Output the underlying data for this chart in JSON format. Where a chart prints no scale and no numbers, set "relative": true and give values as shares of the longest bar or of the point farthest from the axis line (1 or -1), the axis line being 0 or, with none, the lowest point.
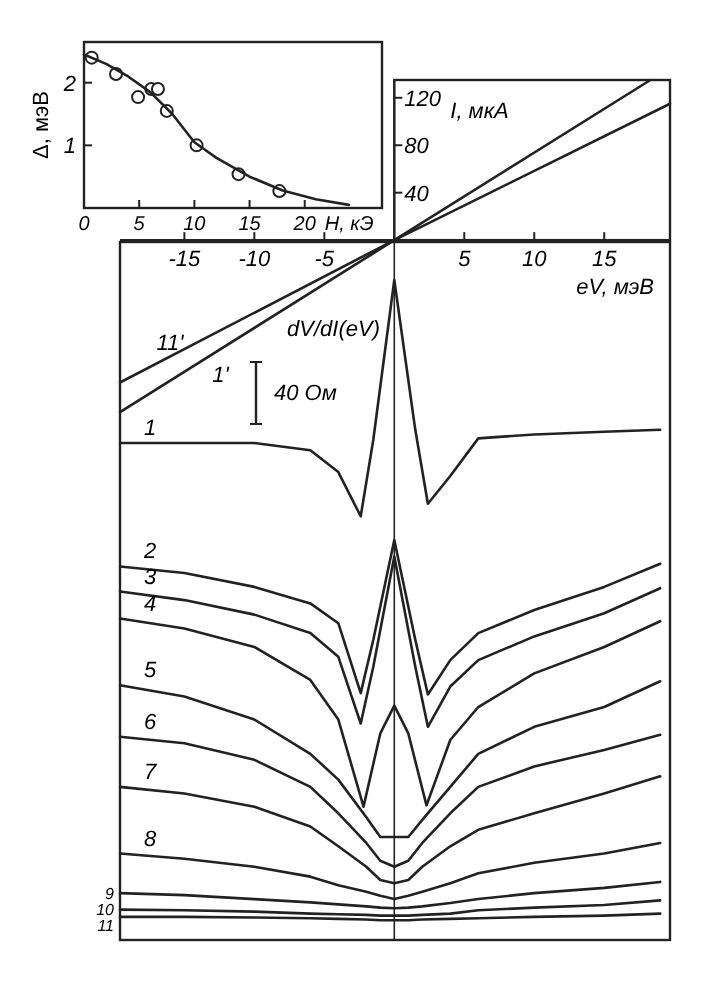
{
  "chart_data": [
    {
      "type": "scatter",
      "xlabel": "H, кЭ",
      "ylabel": "Δ, мэВ",
      "xlim": [
        0,
        27
      ],
      "ylim": [
        0,
        2.65
      ],
      "xticks": [
        0,
        5,
        10,
        15,
        20
      ],
      "yticks": [
        1,
        2
      ],
      "series": [
        {
          "marker": "circle",
          "color": "#222222",
          "x": [
            0.7,
            2.9,
            4.9,
            6.1,
            6.7,
            7.5,
            10.2,
            14.0,
            17.7
          ],
          "values": [
            2.4,
            2.14,
            1.77,
            1.9,
            1.9,
            1.55,
            1.0,
            0.54,
            0.27
          ]
        },
        {
          "type": "line",
          "marker": "none",
          "color": "#222222",
          "x": [
            0,
            2,
            4,
            6,
            8,
            10,
            12,
            15,
            18,
            21,
            24
          ],
          "values": [
            2.45,
            2.3,
            2.1,
            1.85,
            1.5,
            1.05,
            0.8,
            0.5,
            0.28,
            0.14,
            0.05
          ]
        }
      ]
    },
    {
      "type": "line",
      "xlabel": "eV, мэВ",
      "ylabel": "I, мкА",
      "xlim": [
        -19.6,
        19.7
      ],
      "ylim": [
        -590,
        135
      ],
      "xticks": [
        -15,
        -10,
        -5,
        5,
        10,
        15
      ],
      "yticks": [
        40,
        80,
        120
      ],
      "series": [
        {
          "name": "11'",
          "color": "#222222",
          "x": [
            -19.6,
            0,
            19.7
          ],
          "values": [
            -120,
            0,
            115
          ]
        },
        {
          "name": "1'",
          "color": "#222222",
          "x": [
            -19.6,
            0,
            18.3
          ],
          "values": [
            -145,
            0,
            135
          ]
        }
      ]
    },
    {
      "type": "line",
      "relative": true,
      "xlim": [
        -19.6,
        19.7
      ],
      "annotations": [
        "dV/dI(eV)",
        "40 Ом"
      ],
      "series": [
        {
          "name": "1",
          "color": "#222222",
          "x": [
            -19.6,
            -15,
            -10,
            -6,
            -4,
            -2.4,
            -1.5,
            0,
            1.5,
            2.4,
            4,
            6,
            10,
            15,
            19
          ],
          "values": [
            0.753,
            0.753,
            0.753,
            0.742,
            0.709,
            0.642,
            0.758,
            1.0,
            0.773,
            0.661,
            0.703,
            0.76,
            0.766,
            0.77,
            0.773
          ]
        },
        {
          "name": "2",
          "color": "#222222",
          "x": [
            -19.6,
            -15,
            -10,
            -6,
            -4,
            -2.4,
            -1.5,
            0,
            1.5,
            2.4,
            4,
            6,
            10,
            15,
            19
          ],
          "values": [
            0.566,
            0.556,
            0.535,
            0.51,
            0.48,
            0.374,
            0.455,
            0.606,
            0.455,
            0.372,
            0.424,
            0.465,
            0.5,
            0.535,
            0.57
          ]
        },
        {
          "name": "3",
          "color": "#222222",
          "x": [
            -19.6,
            -15,
            -10,
            -6,
            -4,
            -2.4,
            -1.5,
            0,
            1.5,
            2.4,
            4,
            6,
            10,
            15,
            19
          ],
          "values": [
            0.528,
            0.515,
            0.493,
            0.465,
            0.429,
            0.328,
            0.414,
            0.581,
            0.414,
            0.323,
            0.384,
            0.424,
            0.46,
            0.495,
            0.533
          ]
        },
        {
          "name": "4",
          "color": "#222222",
          "x": [
            -19.6,
            -15,
            -10,
            -6,
            -4,
            -2.2,
            -1,
            0,
            1,
            2.3,
            4,
            6,
            10,
            15,
            19
          ],
          "values": [
            0.487,
            0.472,
            0.444,
            0.394,
            0.334,
            0.202,
            0.313,
            0.355,
            0.313,
            0.204,
            0.303,
            0.353,
            0.404,
            0.444,
            0.483
          ]
        },
        {
          "name": "5",
          "color": "#222222",
          "x": [
            -19.6,
            -15,
            -10,
            -6,
            -4,
            -2,
            -1,
            0,
            1,
            2,
            4,
            6,
            10,
            15,
            19
          ],
          "values": [
            0.386,
            0.369,
            0.334,
            0.282,
            0.243,
            0.186,
            0.156,
            0.156,
            0.156,
            0.182,
            0.232,
            0.282,
            0.323,
            0.353,
            0.392
          ]
        },
        {
          "name": "6",
          "color": "#222222",
          "x": [
            -19.6,
            -15,
            -10,
            -6,
            -4,
            -2,
            -1,
            0,
            1,
            2,
            4,
            6,
            10,
            15,
            19
          ],
          "values": [
            0.308,
            0.298,
            0.273,
            0.232,
            0.192,
            0.147,
            0.12,
            0.111,
            0.12,
            0.147,
            0.192,
            0.232,
            0.263,
            0.288,
            0.311
          ]
        },
        {
          "name": "7",
          "color": "#222222",
          "x": [
            -19.6,
            -15,
            -10,
            -6,
            -4,
            -2,
            -1,
            0,
            1,
            2,
            4,
            6,
            10,
            15,
            19
          ],
          "values": [
            0.232,
            0.222,
            0.202,
            0.172,
            0.142,
            0.111,
            0.091,
            0.086,
            0.091,
            0.111,
            0.142,
            0.167,
            0.192,
            0.222,
            0.248
          ]
        },
        {
          "name": "8",
          "color": "#222222",
          "x": [
            -19.6,
            -15,
            -10,
            -6,
            -4,
            -2,
            -1,
            0,
            1,
            2,
            4,
            6,
            10,
            15,
            19
          ],
          "values": [
            0.131,
            0.123,
            0.111,
            0.096,
            0.083,
            0.073,
            0.067,
            0.062,
            0.067,
            0.073,
            0.086,
            0.101,
            0.117,
            0.131,
            0.147
          ]
        },
        {
          "name": "9",
          "color": "#222222",
          "x": [
            -19.6,
            -15,
            -10,
            -6,
            -4,
            -2,
            -1,
            0,
            1,
            2,
            4,
            6,
            10,
            15,
            19
          ],
          "values": [
            0.071,
            0.068,
            0.062,
            0.057,
            0.054,
            0.051,
            0.049,
            0.048,
            0.049,
            0.051,
            0.056,
            0.062,
            0.071,
            0.079,
            0.088
          ]
        },
        {
          "name": "10",
          "color": "#222222",
          "x": [
            -19.6,
            -15,
            -10,
            -6,
            -4,
            -2,
            -1,
            0,
            1,
            2,
            4,
            6,
            10,
            15,
            19
          ],
          "values": [
            0.046,
            0.045,
            0.043,
            0.04,
            0.039,
            0.038,
            0.037,
            0.037,
            0.037,
            0.038,
            0.04,
            0.045,
            0.049,
            0.053,
            0.06
          ]
        },
        {
          "name": "11",
          "color": "#222222",
          "x": [
            -19.6,
            -15,
            -10,
            -6,
            -4,
            -2,
            -1,
            0,
            1,
            2,
            4,
            6,
            10,
            15,
            19
          ],
          "values": [
            0.035,
            0.035,
            0.034,
            0.033,
            0.032,
            0.031,
            0.03,
            0.03,
            0.03,
            0.031,
            0.032,
            0.033,
            0.035,
            0.037,
            0.04
          ]
        }
      ]
    }
  ]
}
